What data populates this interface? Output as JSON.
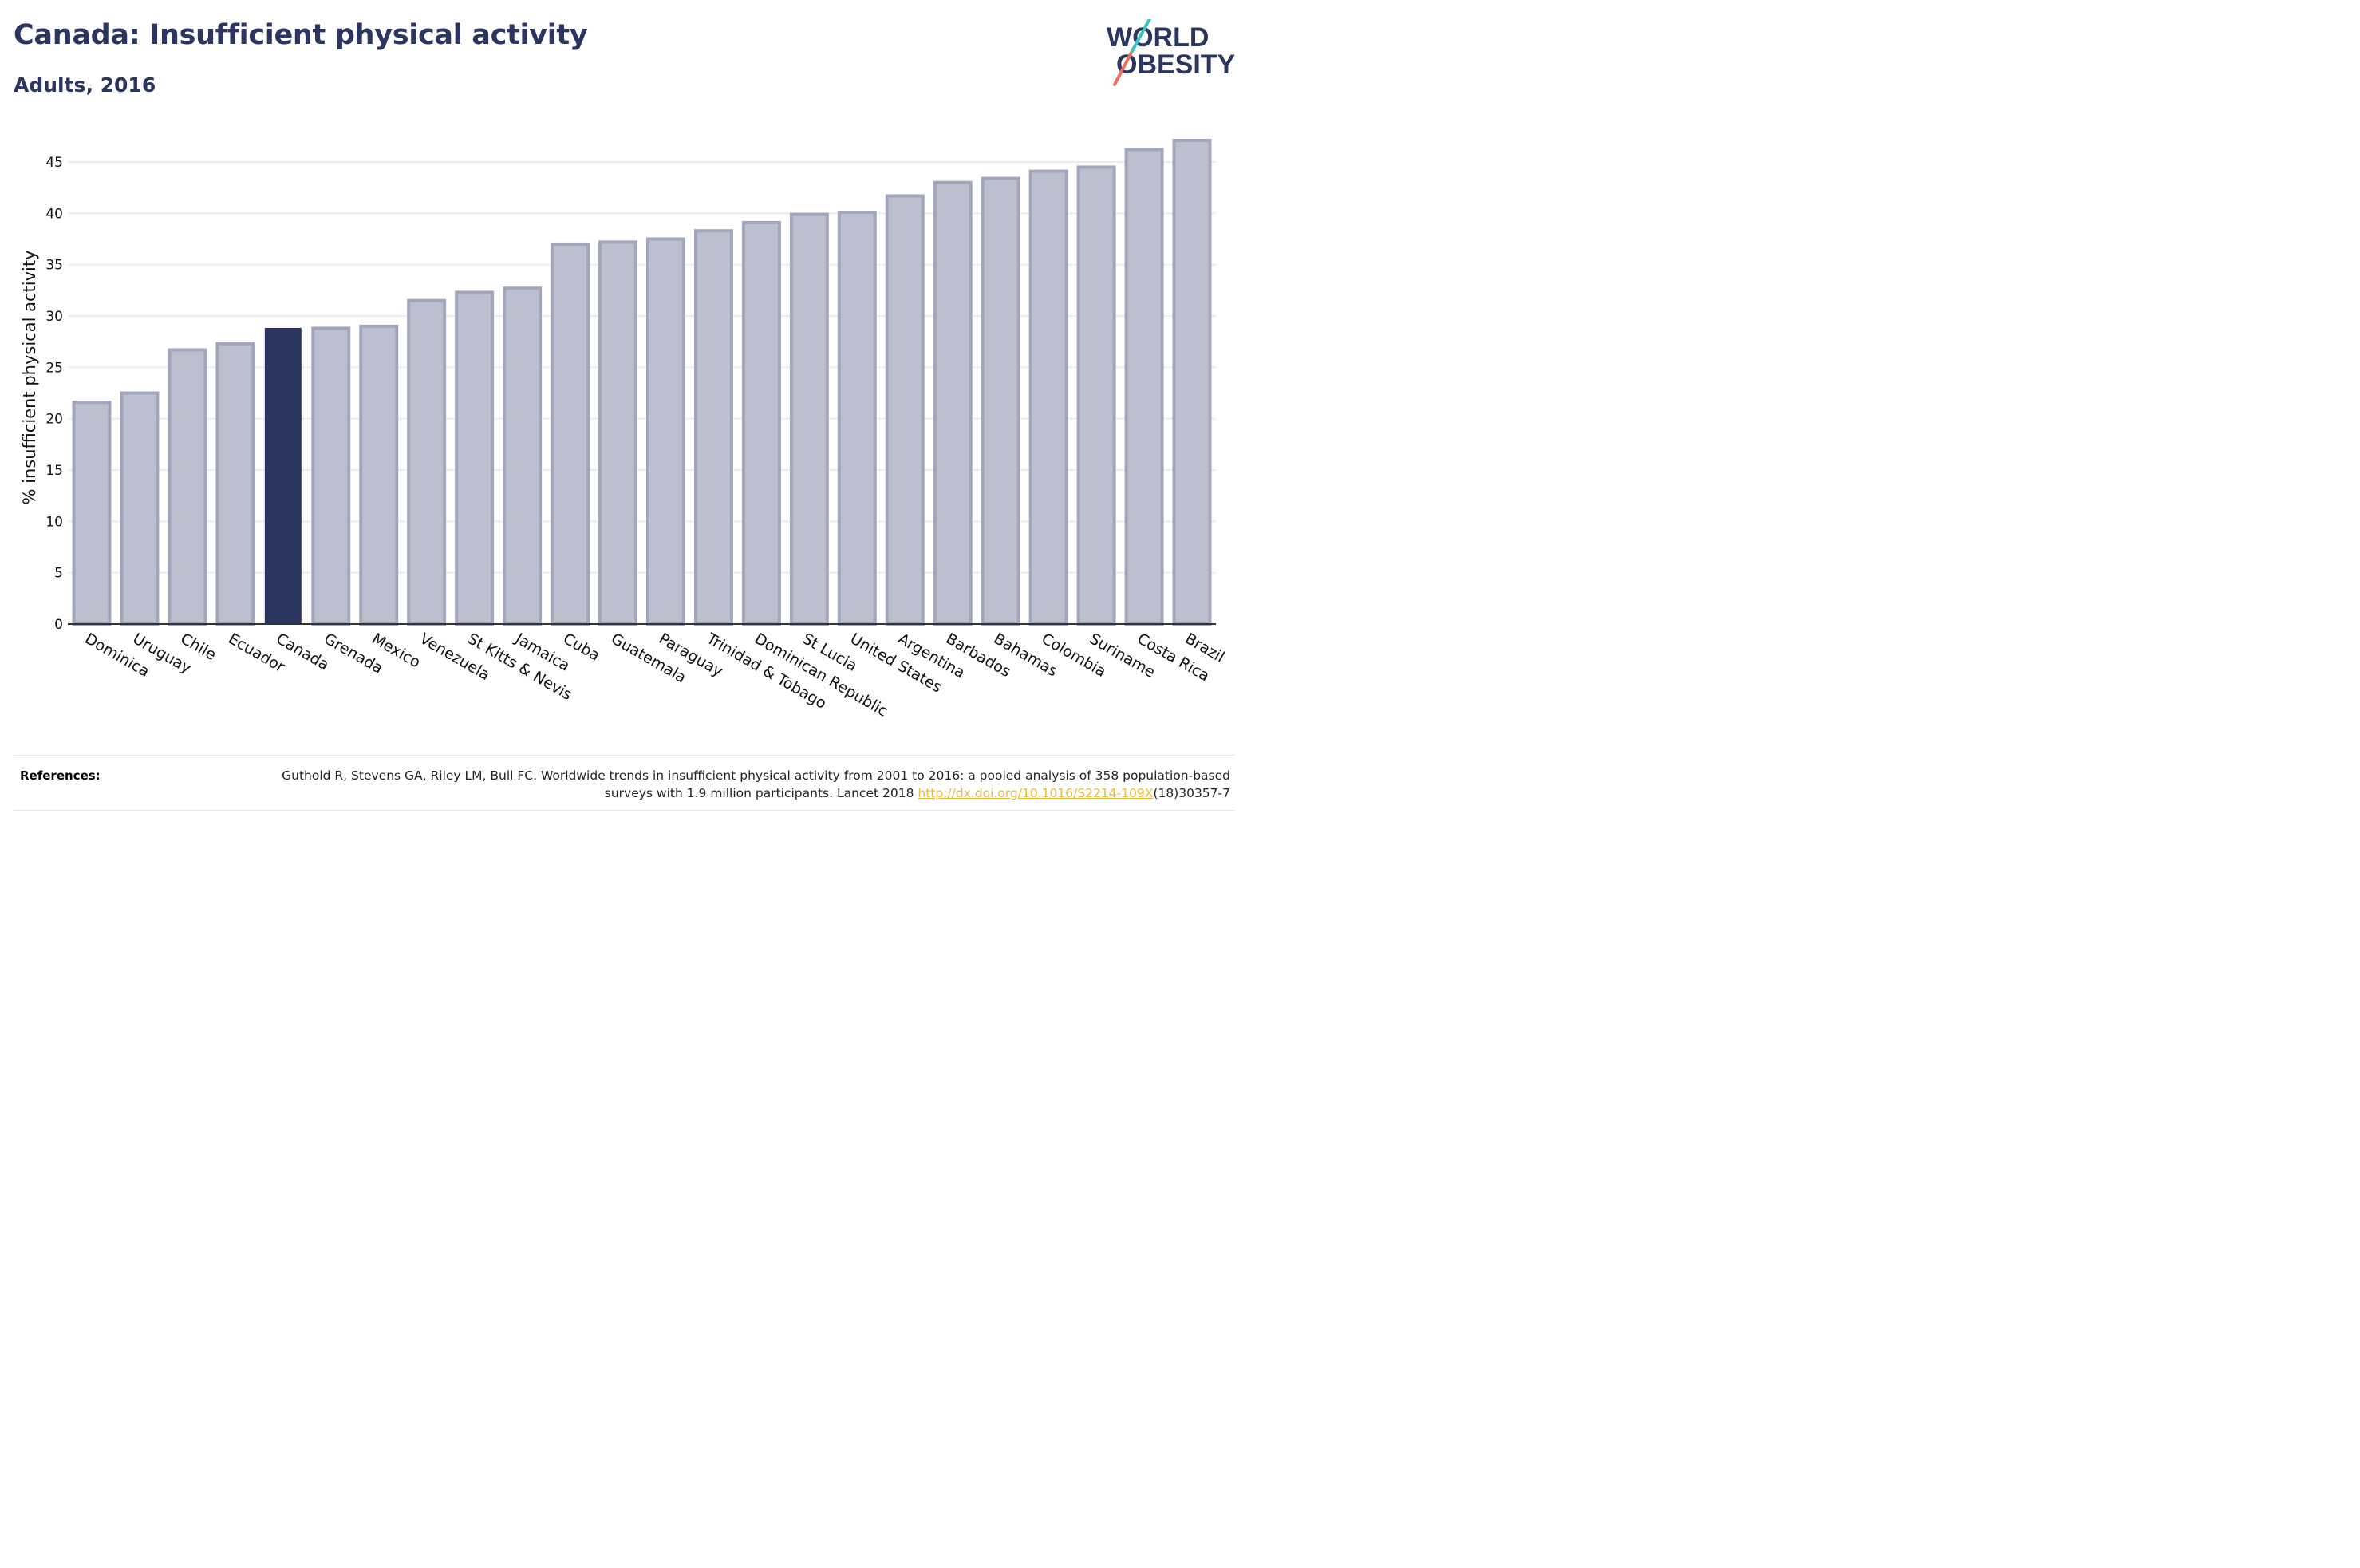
{
  "header": {
    "title": "Canada: Insufficient physical activity",
    "subtitle": "Adults, 2016"
  },
  "logo": {
    "line1": "WORLD",
    "line2": "OBESITY"
  },
  "chart_data": {
    "type": "bar",
    "categories": [
      "Dominica",
      "Uruguay",
      "Chile",
      "Ecuador",
      "Canada",
      "Grenada",
      "Mexico",
      "Venezuela",
      "St Kitts & Nevis",
      "Jamaica",
      "Cuba",
      "Guatemala",
      "Paraguay",
      "Trinidad & Tobago",
      "Dominican Republic",
      "St Lucia",
      "United States",
      "Argentina",
      "Barbados",
      "Bahamas",
      "Colombia",
      "Suriname",
      "Costa Rica",
      "Brazil"
    ],
    "values": [
      21.6,
      22.5,
      26.7,
      27.3,
      28.8,
      28.8,
      29.0,
      31.5,
      32.3,
      32.7,
      37.0,
      37.2,
      37.5,
      38.3,
      39.1,
      39.9,
      40.1,
      41.7,
      43.0,
      43.4,
      44.1,
      44.5,
      46.2,
      47.1
    ],
    "highlight": "Canada",
    "ylabel": "% insufficient physical activity",
    "xlabel": "",
    "yticks": [
      0,
      5,
      10,
      15,
      20,
      25,
      30,
      35,
      40,
      45
    ],
    "ylim": [
      0,
      48
    ],
    "grid": true,
    "colors": {
      "bar": "#bcbfcd",
      "bar_border": "#a2a6bb",
      "highlight": "#2a3560",
      "grid": "#ececf0",
      "axis": "#333333"
    }
  },
  "references": {
    "label": "References:",
    "text_before": "Guthold R, Stevens GA, Riley LM, Bull FC. Worldwide trends in insufficient physical activity from 2001 to 2016: a pooled analysis of 358 population-based surveys with 1.9 million participants. Lancet 2018 ",
    "link": "http://dx.doi.org/10.1016/S2214-109X",
    "text_after": "(18)30357-7"
  }
}
